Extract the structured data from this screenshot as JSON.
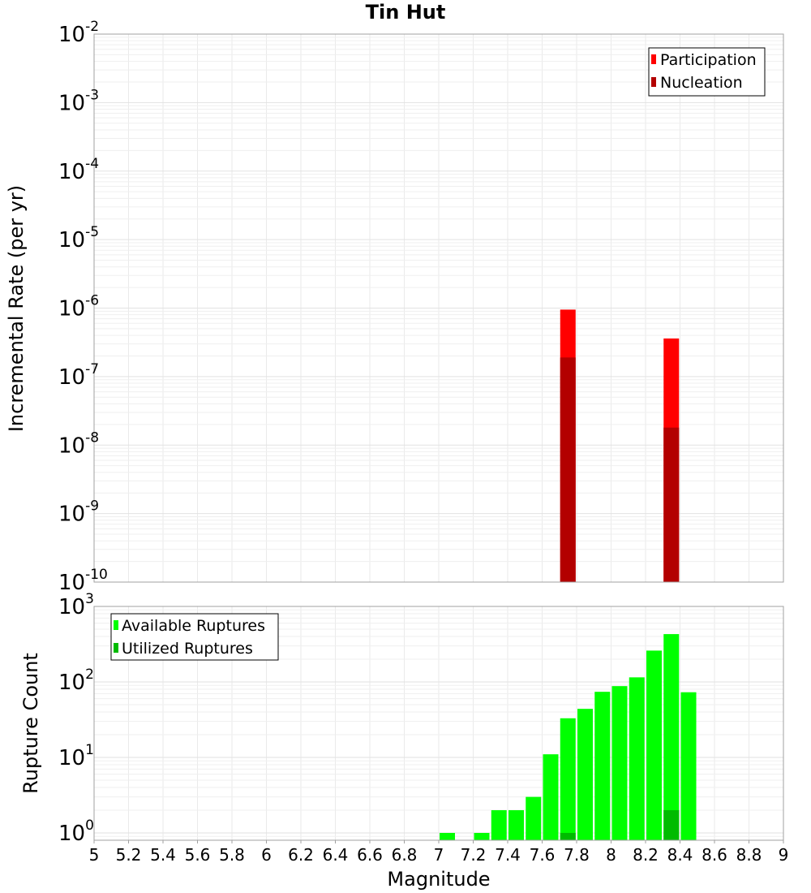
{
  "chart_data": {
    "title": "Tin Hut",
    "xlabel": "Magnitude",
    "xlim": [
      5,
      9
    ],
    "x_ticks": [
      "5",
      "5.2",
      "5.4",
      "5.6",
      "5.8",
      "6",
      "6.2",
      "6.4",
      "6.6",
      "6.8",
      "7",
      "7.2",
      "7.4",
      "7.6",
      "7.8",
      "8",
      "8.2",
      "8.4",
      "8.6",
      "8.8",
      "9"
    ],
    "panels": [
      {
        "type": "bar",
        "ylabel": "Incremental Rate (per yr)",
        "yscale": "log",
        "ylim": [
          1e-10,
          0.01
        ],
        "y_tick_base": "10",
        "y_tick_exponents": [
          "-10",
          "-9",
          "-8",
          "-7",
          "-6",
          "-5",
          "-4",
          "-3",
          "-2"
        ],
        "legend_position": "top-right",
        "series": [
          {
            "name": "Participation",
            "color": "#ff0000",
            "x": [
              7.75,
              8.35
            ],
            "values": [
              9.5e-07,
              3.6e-07
            ]
          },
          {
            "name": "Nucleation",
            "color": "#b30000",
            "x": [
              7.75,
              8.35
            ],
            "values": [
              1.9e-07,
              1.8e-08
            ]
          }
        ]
      },
      {
        "type": "bar",
        "ylabel": "Rupture Count",
        "yscale": "log",
        "ylim": [
          0.8,
          1000
        ],
        "y_tick_base": "10",
        "y_tick_exponents": [
          "0",
          "1",
          "2",
          "3"
        ],
        "legend_position": "top-left",
        "series": [
          {
            "name": "Available Ruptures",
            "color": "#00ff00",
            "x": [
              7.05,
              7.25,
              7.35,
              7.45,
              7.55,
              7.65,
              7.75,
              7.85,
              7.95,
              8.05,
              8.15,
              8.25,
              8.35,
              8.45
            ],
            "values": [
              1,
              1,
              2,
              2,
              3,
              11,
              33,
              44,
              74,
              88,
              115,
              260,
              430,
              73
            ]
          },
          {
            "name": "Utilized Ruptures",
            "color": "#00bb00",
            "x": [
              7.75,
              8.35
            ],
            "values": [
              1,
              2
            ]
          }
        ]
      }
    ]
  }
}
